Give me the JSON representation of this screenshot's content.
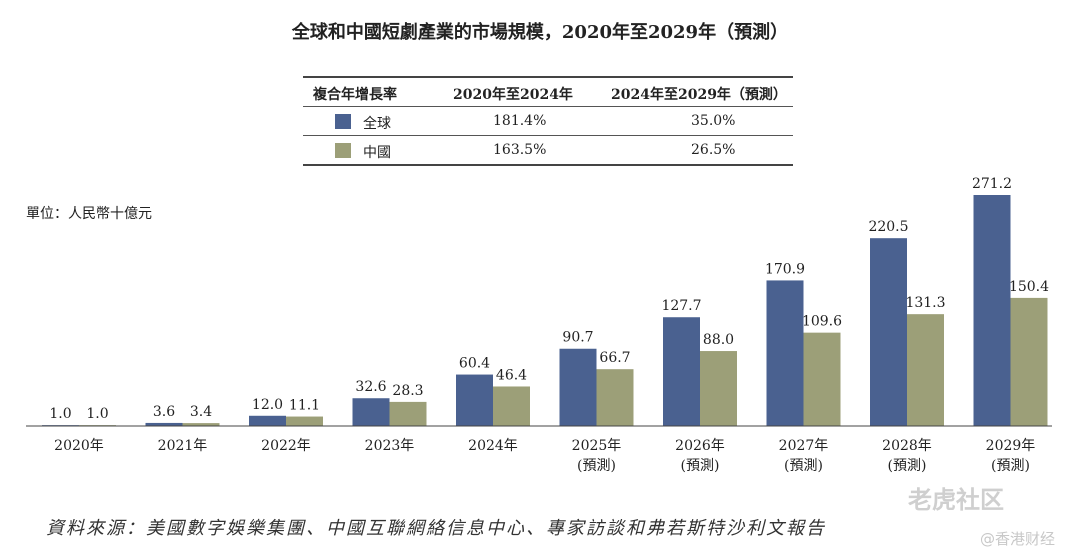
{
  "title": "全球和中國短劇產業的市場規模，2020年至2029年（預測）",
  "cagr_table": {
    "header": [
      "複合年增長率",
      "2020年至2024年",
      "2024年至2029年（預測）"
    ],
    "rows": [
      {
        "name": "全球",
        "color": "#4a6190",
        "v1": "181.4%",
        "v2": "35.0%"
      },
      {
        "name": "中國",
        "color": "#9c9f78",
        "v1": "163.5%",
        "v2": "26.5%"
      }
    ]
  },
  "unit": "單位：人民幣十億元",
  "source": "資料來源：美國數字娛樂集團、中國互聯網絡信息中心、專家訪談和弗若斯特沙利文報告",
  "watermark": "老虎社区",
  "watermark2": "@香港财经",
  "chart_data": {
    "type": "bar",
    "categories": [
      "2020年",
      "2021年",
      "2022年",
      "2023年",
      "2024年",
      "2025年",
      "2026年",
      "2027年",
      "2028年",
      "2029年"
    ],
    "sublabels": [
      "",
      "",
      "",
      "",
      "",
      "(預測)",
      "(預測)",
      "(預測)",
      "(預測)",
      "(預測)"
    ],
    "series": [
      {
        "name": "全球",
        "color": "#4a6190",
        "values": [
          1.0,
          3.6,
          12.0,
          32.6,
          60.4,
          90.7,
          127.7,
          170.9,
          220.5,
          271.2
        ],
        "labels": [
          "1.0",
          "3.6",
          "12.0",
          "32.6",
          "60.4",
          "90.7",
          "127.7",
          "170.9",
          "220.5",
          "271.2"
        ]
      },
      {
        "name": "中國",
        "color": "#9c9f78",
        "values": [
          1.0,
          3.4,
          11.1,
          28.3,
          46.4,
          66.7,
          88.0,
          109.6,
          131.3,
          150.4
        ],
        "labels": [
          "1.0",
          "3.4",
          "11.1",
          "28.3",
          "46.4",
          "66.7",
          "88.0",
          "109.6",
          "131.3",
          "150.4"
        ]
      }
    ],
    "ylim": [
      0,
      271.2
    ],
    "xlabel": "",
    "ylabel": ""
  }
}
